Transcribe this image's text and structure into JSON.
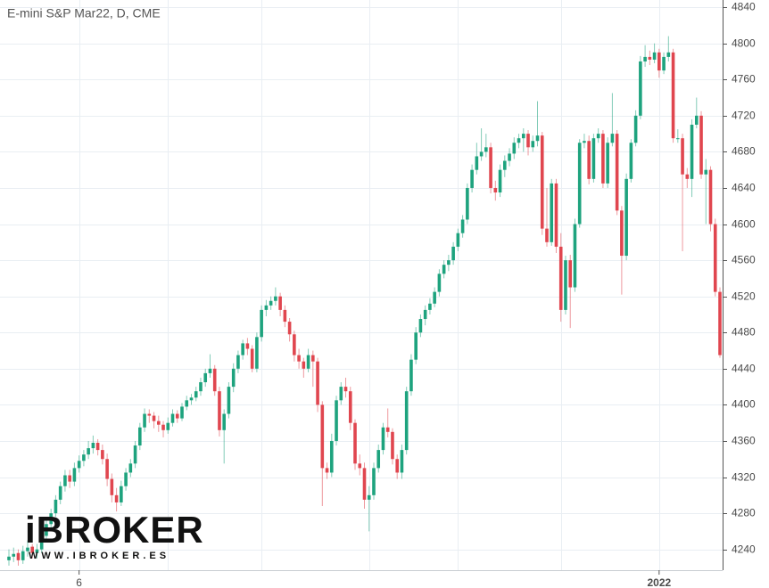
{
  "chart_data": {
    "type": "candlestick",
    "title": "E-mini S&P Mar22, D, CME",
    "logo": {
      "text": "iBROKER",
      "url": "WWW.IBROKER.ES"
    },
    "up_color": "#1ea37e",
    "down_color": "#e0464f",
    "ylim": [
      4217,
      4848
    ],
    "yticks": [
      4240,
      4280,
      4320,
      4360,
      4400,
      4440,
      4480,
      4520,
      4560,
      4600,
      4640,
      4680,
      4720,
      4760,
      4800,
      4840
    ],
    "grid": true,
    "categories": [
      null,
      null,
      null,
      null,
      null,
      null,
      null,
      null,
      null,
      null,
      null,
      null,
      null,
      null,
      null,
      "6",
      null,
      null,
      null,
      null,
      null,
      null,
      null,
      null,
      null,
      null,
      null,
      null,
      null,
      null,
      null,
      null,
      null,
      null,
      null,
      null,
      null,
      null,
      null,
      null,
      null,
      null,
      null,
      null,
      null,
      null,
      null,
      null,
      null,
      null,
      null,
      null,
      null,
      null,
      null,
      null,
      null,
      null,
      null,
      null,
      null,
      null,
      null,
      null,
      null,
      null,
      null,
      null,
      null,
      null,
      null,
      null,
      null,
      null,
      null,
      null,
      null,
      null,
      null,
      null,
      null,
      null,
      null,
      null,
      null,
      null,
      null,
      null,
      null,
      null,
      null,
      null,
      null,
      null,
      null,
      null,
      null,
      null,
      null,
      null,
      null,
      null,
      null,
      null,
      null,
      null,
      null,
      null,
      null,
      null,
      null,
      null,
      null,
      null,
      null,
      null,
      null,
      null,
      null,
      null,
      null,
      null,
      null,
      null,
      null,
      null,
      null,
      null,
      null,
      null,
      null,
      null,
      null,
      null,
      null,
      null,
      null,
      null,
      null,
      "2022",
      null,
      null,
      null,
      null,
      null,
      null,
      null,
      null,
      null,
      null,
      null,
      null,
      null
    ],
    "ohlc": [
      [
        4228,
        4240,
        4222,
        4232
      ],
      [
        4232,
        4242,
        4226,
        4235
      ],
      [
        4236,
        4240,
        4222,
        4228
      ],
      [
        4228,
        4244,
        4224,
        4238
      ],
      [
        4238,
        4250,
        4232,
        4242
      ],
      [
        4243,
        4246,
        4230,
        4236
      ],
      [
        4236,
        4246,
        4230,
        4240
      ],
      [
        4240,
        4260,
        4236,
        4255
      ],
      [
        4255,
        4272,
        4250,
        4268
      ],
      [
        4268,
        4285,
        4262,
        4280
      ],
      [
        4280,
        4300,
        4276,
        4295
      ],
      [
        4295,
        4315,
        4290,
        4310
      ],
      [
        4310,
        4328,
        4304,
        4322
      ],
      [
        4322,
        4328,
        4308,
        4315
      ],
      [
        4315,
        4336,
        4310,
        4330
      ],
      [
        4330,
        4344,
        4325,
        4338
      ],
      [
        4338,
        4350,
        4332,
        4345
      ],
      [
        4345,
        4360,
        4340,
        4352
      ],
      [
        4352,
        4366,
        4346,
        4358
      ],
      [
        4358,
        4362,
        4344,
        4350
      ],
      [
        4350,
        4356,
        4334,
        4340
      ],
      [
        4340,
        4346,
        4310,
        4318
      ],
      [
        4318,
        4324,
        4292,
        4300
      ],
      [
        4300,
        4308,
        4282,
        4292
      ],
      [
        4292,
        4316,
        4288,
        4310
      ],
      [
        4310,
        4330,
        4305,
        4325
      ],
      [
        4325,
        4340,
        4320,
        4335
      ],
      [
        4335,
        4360,
        4330,
        4355
      ],
      [
        4355,
        4380,
        4350,
        4375
      ],
      [
        4375,
        4396,
        4370,
        4390
      ],
      [
        4390,
        4395,
        4380,
        4388
      ],
      [
        4388,
        4392,
        4374,
        4382
      ],
      [
        4382,
        4388,
        4370,
        4378
      ],
      [
        4378,
        4382,
        4364,
        4372
      ],
      [
        4372,
        4386,
        4368,
        4380
      ],
      [
        4380,
        4395,
        4376,
        4390
      ],
      [
        4390,
        4394,
        4380,
        4385
      ],
      [
        4385,
        4402,
        4382,
        4398
      ],
      [
        4398,
        4410,
        4394,
        4405
      ],
      [
        4405,
        4412,
        4400,
        4408
      ],
      [
        4408,
        4420,
        4404,
        4415
      ],
      [
        4415,
        4430,
        4410,
        4425
      ],
      [
        4425,
        4440,
        4420,
        4435
      ],
      [
        4435,
        4456,
        4430,
        4440
      ],
      [
        4440,
        4444,
        4410,
        4415
      ],
      [
        4415,
        4420,
        4365,
        4372
      ],
      [
        4372,
        4395,
        4335,
        4390
      ],
      [
        4390,
        4425,
        4385,
        4420
      ],
      [
        4420,
        4446,
        4414,
        4440
      ],
      [
        4440,
        4460,
        4435,
        4455
      ],
      [
        4455,
        4472,
        4450,
        4468
      ],
      [
        4468,
        4474,
        4455,
        4462
      ],
      [
        4462,
        4466,
        4436,
        4440
      ],
      [
        4440,
        4480,
        4436,
        4475
      ],
      [
        4475,
        4510,
        4470,
        4505
      ],
      [
        4505,
        4516,
        4498,
        4510
      ],
      [
        4510,
        4520,
        4505,
        4515
      ],
      [
        4515,
        4530,
        4510,
        4520
      ],
      [
        4520,
        4524,
        4498,
        4505
      ],
      [
        4505,
        4510,
        4486,
        4492
      ],
      [
        4492,
        4496,
        4470,
        4478
      ],
      [
        4478,
        4482,
        4448,
        4455
      ],
      [
        4455,
        4462,
        4440,
        4448
      ],
      [
        4448,
        4452,
        4430,
        4440
      ],
      [
        4440,
        4462,
        4436,
        4455
      ],
      [
        4455,
        4460,
        4420,
        4448
      ],
      [
        4448,
        4452,
        4392,
        4400
      ],
      [
        4400,
        4404,
        4288,
        4330
      ],
      [
        4330,
        4336,
        4318,
        4325
      ],
      [
        4325,
        4368,
        4320,
        4360
      ],
      [
        4360,
        4410,
        4355,
        4405
      ],
      [
        4405,
        4425,
        4400,
        4420
      ],
      [
        4420,
        4430,
        4408,
        4415
      ],
      [
        4415,
        4420,
        4372,
        4380
      ],
      [
        4380,
        4384,
        4328,
        4335
      ],
      [
        4335,
        4345,
        4322,
        4330
      ],
      [
        4330,
        4336,
        4285,
        4295
      ],
      [
        4295,
        4310,
        4260,
        4300
      ],
      [
        4300,
        4336,
        4295,
        4330
      ],
      [
        4330,
        4356,
        4325,
        4350
      ],
      [
        4350,
        4380,
        4345,
        4375
      ],
      [
        4375,
        4396,
        4364,
        4370
      ],
      [
        4370,
        4374,
        4334,
        4340
      ],
      [
        4340,
        4345,
        4318,
        4325
      ],
      [
        4325,
        4356,
        4318,
        4350
      ],
      [
        4350,
        4420,
        4345,
        4415
      ],
      [
        4415,
        4456,
        4410,
        4450
      ],
      [
        4450,
        4486,
        4445,
        4480
      ],
      [
        4480,
        4500,
        4475,
        4495
      ],
      [
        4495,
        4510,
        4488,
        4505
      ],
      [
        4505,
        4518,
        4500,
        4512
      ],
      [
        4512,
        4530,
        4508,
        4525
      ],
      [
        4525,
        4550,
        4520,
        4545
      ],
      [
        4545,
        4560,
        4540,
        4555
      ],
      [
        4555,
        4566,
        4548,
        4560
      ],
      [
        4560,
        4580,
        4555,
        4575
      ],
      [
        4575,
        4595,
        4570,
        4590
      ],
      [
        4590,
        4610,
        4585,
        4605
      ],
      [
        4605,
        4645,
        4600,
        4640
      ],
      [
        4640,
        4666,
        4635,
        4660
      ],
      [
        4660,
        4690,
        4655,
        4675
      ],
      [
        4675,
        4706,
        4670,
        4680
      ],
      [
        4680,
        4700,
        4674,
        4685
      ],
      [
        4685,
        4690,
        4634,
        4640
      ],
      [
        4640,
        4648,
        4626,
        4635
      ],
      [
        4635,
        4666,
        4630,
        4660
      ],
      [
        4660,
        4676,
        4652,
        4670
      ],
      [
        4670,
        4684,
        4664,
        4678
      ],
      [
        4678,
        4696,
        4672,
        4690
      ],
      [
        4690,
        4700,
        4684,
        4695
      ],
      [
        4695,
        4706,
        4680,
        4700
      ],
      [
        4700,
        4704,
        4676,
        4685
      ],
      [
        4685,
        4698,
        4680,
        4692
      ],
      [
        4692,
        4736,
        4686,
        4698
      ],
      [
        4698,
        4702,
        4588,
        4595
      ],
      [
        4595,
        4640,
        4575,
        4580
      ],
      [
        4580,
        4650,
        4576,
        4645
      ],
      [
        4645,
        4650,
        4568,
        4575
      ],
      [
        4575,
        4590,
        4492,
        4505
      ],
      [
        4505,
        4565,
        4500,
        4560
      ],
      [
        4560,
        4566,
        4485,
        4530
      ],
      [
        4530,
        4606,
        4525,
        4600
      ],
      [
        4600,
        4694,
        4596,
        4690
      ],
      [
        4690,
        4700,
        4684,
        4692
      ],
      [
        4692,
        4698,
        4644,
        4650
      ],
      [
        4650,
        4700,
        4646,
        4695
      ],
      [
        4695,
        4706,
        4690,
        4700
      ],
      [
        4700,
        4704,
        4640,
        4645
      ],
      [
        4645,
        4696,
        4640,
        4690
      ],
      [
        4690,
        4745,
        4686,
        4700
      ],
      [
        4700,
        4704,
        4610,
        4615
      ],
      [
        4615,
        4620,
        4522,
        4565
      ],
      [
        4565,
        4656,
        4560,
        4650
      ],
      [
        4650,
        4694,
        4646,
        4690
      ],
      [
        4690,
        4726,
        4686,
        4720
      ],
      [
        4720,
        4786,
        4716,
        4780
      ],
      [
        4780,
        4798,
        4774,
        4785
      ],
      [
        4785,
        4792,
        4776,
        4782
      ],
      [
        4782,
        4800,
        4778,
        4790
      ],
      [
        4790,
        4794,
        4762,
        4770
      ],
      [
        4770,
        4790,
        4766,
        4785
      ],
      [
        4785,
        4808,
        4780,
        4790
      ],
      [
        4790,
        4794,
        4690,
        4695
      ],
      [
        4695,
        4705,
        4690,
        4695
      ],
      [
        4695,
        4700,
        4570,
        4655
      ],
      [
        4655,
        4662,
        4640,
        4650
      ],
      [
        4650,
        4716,
        4630,
        4710
      ],
      [
        4710,
        4740,
        4706,
        4720
      ],
      [
        4720,
        4725,
        4650,
        4655
      ],
      [
        4655,
        4672,
        4600,
        4660
      ],
      [
        4660,
        4664,
        4592,
        4600
      ],
      [
        4600,
        4606,
        4520,
        4525
      ],
      [
        4525,
        4530,
        4452,
        4455
      ]
    ]
  }
}
